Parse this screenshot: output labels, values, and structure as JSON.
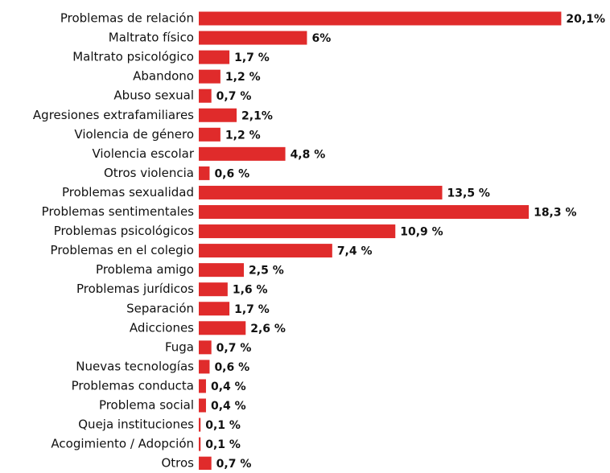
{
  "chart_data": {
    "type": "bar",
    "orientation": "horizontal",
    "categories": [
      "Problemas de relación",
      "Maltrato físico",
      "Maltrato psicológico",
      "Abandono",
      "Abuso sexual",
      "Agresiones extrafamiliares",
      "Violencia de género",
      "Violencia escolar",
      "Otros violencia",
      "Problemas sexualidad",
      "Problemas sentimentales",
      "Problemas psicológicos",
      "Problemas en el colegio",
      "Problema amigo",
      "Problemas jurídicos",
      "Separación",
      "Adicciones",
      "Fuga",
      "Nuevas tecnologías",
      "Problemas conducta",
      "Problema social",
      "Queja instituciones",
      "Acogimiento / Adopción",
      "Otros"
    ],
    "values": [
      20.1,
      6,
      1.7,
      1.2,
      0.7,
      2.1,
      1.2,
      4.8,
      0.6,
      13.5,
      18.3,
      10.9,
      7.4,
      2.5,
      1.6,
      1.7,
      2.6,
      0.7,
      0.6,
      0.4,
      0.4,
      0.1,
      0.1,
      0.7
    ],
    "value_labels": [
      "20,1%",
      "6%",
      "1,7 %",
      "1,2 %",
      "0,7 %",
      "2,1%",
      "1,2 %",
      "4,8 %",
      "0,6 %",
      "13,5 %",
      "18,3 %",
      "10,9 %",
      "7,4 %",
      "2,5 %",
      "1,6 %",
      "1,7 %",
      "2,6 %",
      "0,7 %",
      "0,6 %",
      "0,4 %",
      "0,4 %",
      "0,1 %",
      "0,1 %",
      "0,7 %"
    ],
    "color": "#e02b2b",
    "xlim": [
      0,
      22
    ]
  }
}
